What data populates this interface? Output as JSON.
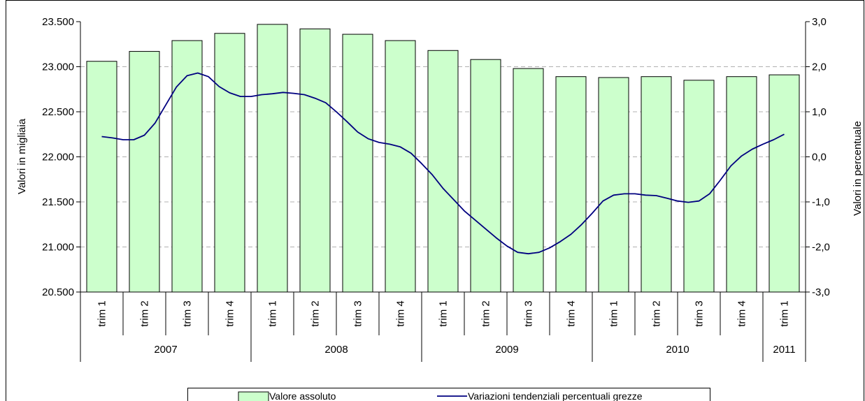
{
  "chart_data": {
    "type": "bar",
    "categories": [
      "trim 1",
      "trim 2",
      "trim 3",
      "trim 4",
      "trim 1",
      "trim 2",
      "trim 3",
      "trim 4",
      "trim 1",
      "trim 2",
      "trim 3",
      "trim 4",
      "trim 1",
      "trim 2",
      "trim 3",
      "trim 4",
      "trim 1"
    ],
    "years": [
      {
        "label": "2007",
        "count": 4
      },
      {
        "label": "2008",
        "count": 4
      },
      {
        "label": "2009",
        "count": 4
      },
      {
        "label": "2010",
        "count": 4
      },
      {
        "label": "2011",
        "count": 1
      }
    ],
    "series": [
      {
        "name": "Valore assoluto",
        "type": "bar",
        "axis": "left",
        "values": [
          23060,
          23170,
          23290,
          23370,
          23470,
          23420,
          23360,
          23290,
          23180,
          23080,
          22980,
          22890,
          22880,
          22890,
          22850,
          22890,
          22910
        ]
      },
      {
        "name": "Variazioni tendenziali percentuali grezze",
        "type": "line",
        "axis": "right",
        "points": [
          [
            0.0,
            0.45
          ],
          [
            0.25,
            0.42
          ],
          [
            0.5,
            0.38
          ],
          [
            0.75,
            0.38
          ],
          [
            1.0,
            0.48
          ],
          [
            1.25,
            0.75
          ],
          [
            1.5,
            1.15
          ],
          [
            1.75,
            1.55
          ],
          [
            2.0,
            1.8
          ],
          [
            2.25,
            1.86
          ],
          [
            2.5,
            1.78
          ],
          [
            2.75,
            1.56
          ],
          [
            3.0,
            1.42
          ],
          [
            3.25,
            1.34
          ],
          [
            3.5,
            1.34
          ],
          [
            3.75,
            1.38
          ],
          [
            4.0,
            1.4
          ],
          [
            4.25,
            1.43
          ],
          [
            4.5,
            1.41
          ],
          [
            4.75,
            1.38
          ],
          [
            5.0,
            1.3
          ],
          [
            5.25,
            1.2
          ],
          [
            5.5,
            1.0
          ],
          [
            5.75,
            0.78
          ],
          [
            6.0,
            0.55
          ],
          [
            6.25,
            0.4
          ],
          [
            6.5,
            0.32
          ],
          [
            6.75,
            0.28
          ],
          [
            7.0,
            0.22
          ],
          [
            7.25,
            0.08
          ],
          [
            7.5,
            -0.15
          ],
          [
            7.75,
            -0.4
          ],
          [
            8.0,
            -0.7
          ],
          [
            8.25,
            -0.95
          ],
          [
            8.5,
            -1.2
          ],
          [
            8.75,
            -1.4
          ],
          [
            9.0,
            -1.6
          ],
          [
            9.25,
            -1.8
          ],
          [
            9.5,
            -1.98
          ],
          [
            9.75,
            -2.12
          ],
          [
            10.0,
            -2.15
          ],
          [
            10.25,
            -2.12
          ],
          [
            10.5,
            -2.02
          ],
          [
            10.75,
            -1.88
          ],
          [
            11.0,
            -1.72
          ],
          [
            11.25,
            -1.5
          ],
          [
            11.5,
            -1.25
          ],
          [
            11.75,
            -0.98
          ],
          [
            12.0,
            -0.85
          ],
          [
            12.25,
            -0.82
          ],
          [
            12.5,
            -0.82
          ],
          [
            12.75,
            -0.85
          ],
          [
            13.0,
            -0.86
          ],
          [
            13.25,
            -0.92
          ],
          [
            13.5,
            -0.98
          ],
          [
            13.75,
            -1.01
          ],
          [
            14.0,
            -0.98
          ],
          [
            14.25,
            -0.82
          ],
          [
            14.5,
            -0.52
          ],
          [
            14.75,
            -0.2
          ],
          [
            15.0,
            0.02
          ],
          [
            15.25,
            0.17
          ],
          [
            15.5,
            0.28
          ],
          [
            15.75,
            0.38
          ],
          [
            16.0,
            0.5
          ]
        ]
      }
    ],
    "ylabel": "Valori in migliaia",
    "y2label": "Valori in percentuale",
    "ylim": [
      20500,
      23500
    ],
    "y2lim": [
      -3.0,
      3.0
    ],
    "yticks": [
      "20.500",
      "21.000",
      "21.500",
      "22.000",
      "22.500",
      "23.000",
      "23.500"
    ],
    "y2ticks": [
      "-3,0",
      "-2,0",
      "-1,0",
      "0,0",
      "1,0",
      "2,0",
      "3,0"
    ],
    "grid": "horizontal dashed",
    "legend": "bottom",
    "colors": {
      "bar_fill": "#ccffcc",
      "bar_stroke": "#000000",
      "line": "#000080",
      "grid": "#b0b0b0"
    }
  }
}
